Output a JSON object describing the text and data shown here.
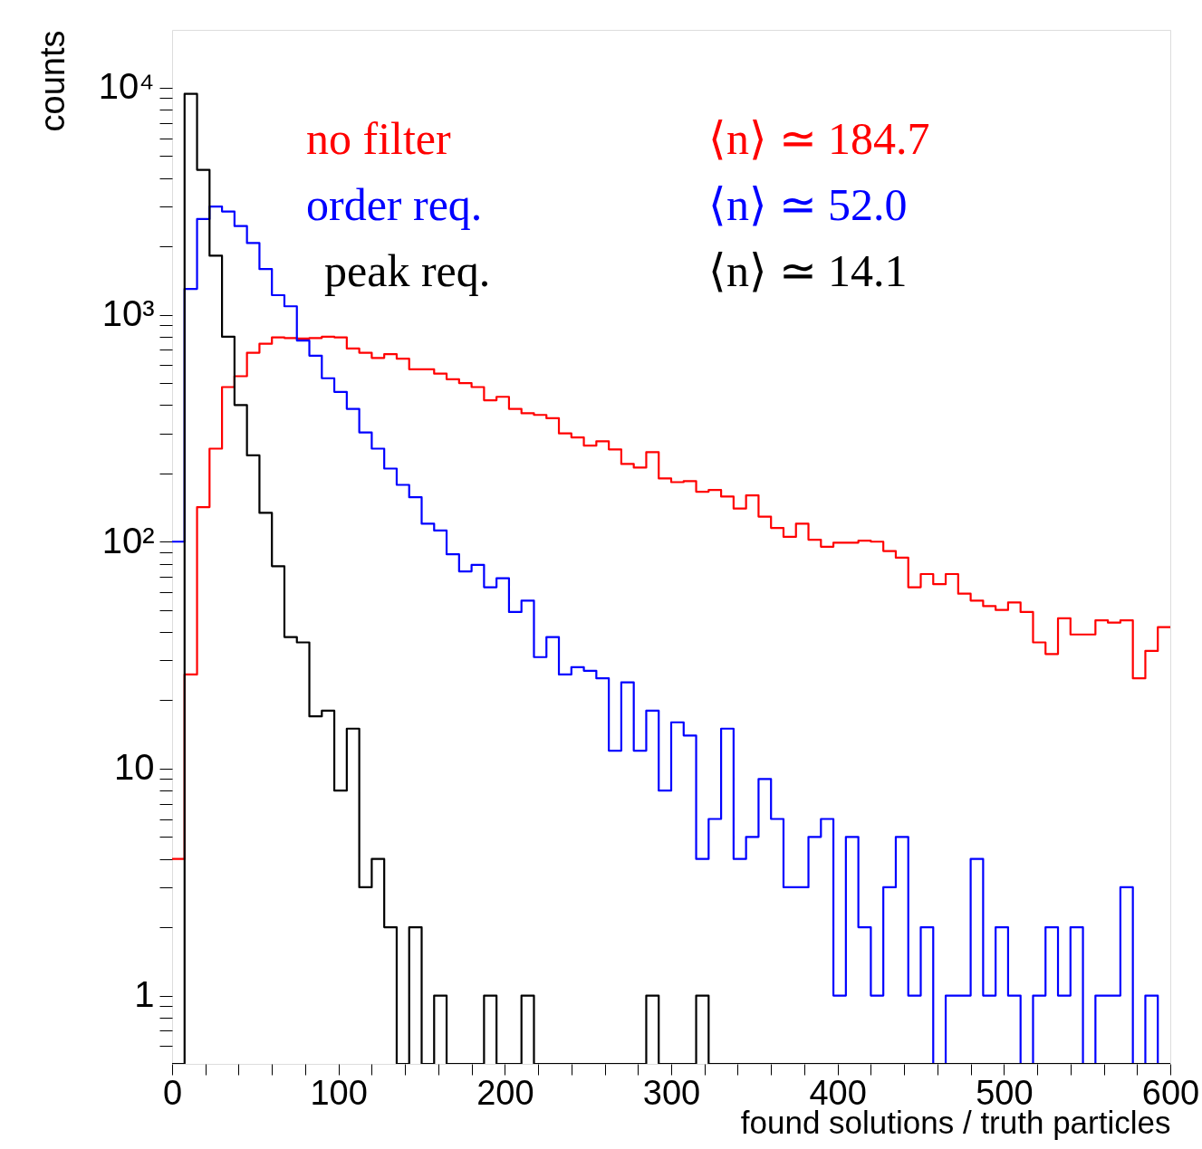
{
  "chart_data": {
    "type": "histogram",
    "xlabel": "found solutions / truth particles",
    "ylabel": "counts",
    "bins": [
      0,
      7.5,
      15,
      22.5,
      30,
      37.5,
      45,
      52.5,
      60,
      67.5,
      75,
      82.5,
      90,
      97.5,
      105,
      112.5,
      120,
      127.5,
      135,
      142.5,
      150,
      157.5,
      165,
      172.5,
      180,
      187.5,
      195,
      202.5,
      210,
      217.5,
      225,
      232.5,
      240,
      247.5,
      255,
      262.5,
      270,
      277.5,
      285,
      292.5,
      300,
      307.5,
      315,
      322.5,
      330,
      337.5,
      345,
      352.5,
      360,
      367.5,
      375,
      382.5,
      390,
      397.5,
      405,
      412.5,
      420,
      427.5,
      435,
      442.5,
      450,
      457.5,
      465,
      472.5,
      480,
      487.5,
      495,
      502.5,
      510,
      517.5,
      525,
      532.5,
      540,
      547.5,
      555,
      562.5,
      570,
      577.5,
      585,
      592.5,
      600
    ],
    "series": [
      {
        "name": "no filter",
        "color": "#ff0000",
        "values": [
          4,
          26,
          142,
          257,
          480,
          536,
          680,
          745,
          795,
          790,
          785,
          790,
          800,
          795,
          710,
          680,
          645,
          670,
          640,
          575,
          575,
          550,
          520,
          500,
          480,
          420,
          435,
          385,
          368,
          362,
          350,
          300,
          288,
          265,
          277,
          255,
          220,
          212,
          248,
          190,
          183,
          185,
          166,
          169,
          158,
          140,
          160,
          129,
          115,
          105,
          120,
          102,
          95,
          99,
          99,
          101,
          100,
          91,
          85,
          63,
          72,
          65,
          72,
          59,
          55,
          52,
          50,
          54,
          49,
          36,
          32,
          46,
          39,
          39,
          45,
          44,
          45,
          25,
          33,
          42
        ]
      },
      {
        "name": "order req.",
        "color": "#0000ff",
        "values": [
          100,
          1300,
          2640,
          3000,
          2850,
          2460,
          2070,
          1590,
          1220,
          1090,
          770,
          660,
          525,
          457,
          385,
          303,
          257,
          210,
          178,
          157,
          120,
          112,
          88,
          74,
          79,
          63,
          69,
          49,
          55,
          31,
          38,
          26,
          28,
          27,
          25,
          12,
          24,
          12,
          18,
          8,
          16,
          14,
          4,
          6,
          15,
          4,
          5,
          9,
          6,
          3,
          3,
          5,
          6,
          1,
          5,
          2,
          1,
          3,
          5,
          1,
          2,
          null,
          1,
          1,
          4,
          1,
          2,
          1,
          null,
          1,
          2,
          1,
          2,
          null,
          1,
          1,
          3,
          null,
          1,
          null
        ]
      },
      {
        "name": "peak req.",
        "color": "#000000",
        "values": [
          null,
          9400,
          4350,
          1820,
          800,
          400,
          240,
          134,
          78,
          38,
          36,
          17,
          18,
          8,
          15,
          3,
          4,
          2,
          null,
          2,
          null,
          1,
          null,
          null,
          null,
          1,
          null,
          null,
          1,
          null,
          null,
          null,
          null,
          null,
          null,
          null,
          null,
          null,
          1,
          null,
          null,
          null,
          1,
          null,
          null,
          null,
          null,
          null,
          null,
          null,
          null,
          null,
          null,
          null,
          null,
          null,
          null,
          null,
          null,
          null,
          null,
          null,
          null,
          null,
          null,
          null,
          null,
          null,
          null,
          null,
          null,
          null,
          null,
          null,
          null,
          null,
          null,
          null,
          null,
          null
        ]
      }
    ],
    "annotations": [
      "⟨n⟩ ≃ 184.7",
      "⟨n⟩ ≃ 52.0",
      "⟨n⟩ ≃ 14.1"
    ],
    "log": "y",
    "xlim": [
      0,
      600
    ],
    "xticks": [
      0,
      {
        "value": 20,
        "label": null
      },
      {
        "value": 40,
        "label": null
      },
      {
        "value": 60,
        "label": null
      },
      {
        "value": 80,
        "label": null
      },
      100,
      {
        "value": 120,
        "label": null
      },
      {
        "value": 140,
        "label": null
      },
      {
        "value": 160,
        "label": null
      },
      {
        "value": 180,
        "label": null
      },
      200,
      {
        "value": 220,
        "label": null
      },
      {
        "value": 240,
        "label": null
      },
      {
        "value": 260,
        "label": null
      },
      {
        "value": 280,
        "label": null
      },
      300,
      {
        "value": 320,
        "label": null
      },
      {
        "value": 340,
        "label": null
      },
      {
        "value": 360,
        "label": null
      },
      {
        "value": 380,
        "label": null
      },
      400,
      {
        "value": 420,
        "label": null
      },
      {
        "value": 440,
        "label": null
      },
      {
        "value": 460,
        "label": null
      },
      {
        "value": 480,
        "label": null
      },
      500,
      {
        "value": 520,
        "label": null
      },
      {
        "value": 540,
        "label": null
      },
      {
        "value": 560,
        "label": null
      },
      {
        "value": 580,
        "label": null
      },
      600
    ],
    "ylim": [
      0.5,
      18000
    ],
    "yticks": [
      {
        "value": 0.6,
        "label": null
      },
      {
        "value": 0.7,
        "label": null
      },
      {
        "value": 0.8,
        "label": null
      },
      {
        "value": 0.9,
        "label": null
      },
      1,
      {
        "value": 2,
        "label": null
      },
      {
        "value": 3,
        "label": null
      },
      {
        "value": 4,
        "label": null
      },
      {
        "value": 5,
        "label": null
      },
      {
        "value": 6,
        "label": null
      },
      {
        "value": 7,
        "label": null
      },
      {
        "value": 8,
        "label": null
      },
      {
        "value": 9,
        "label": null
      },
      10,
      {
        "value": 20,
        "label": null
      },
      {
        "value": 30,
        "label": null
      },
      {
        "value": 40,
        "label": null
      },
      {
        "value": 50,
        "label": null
      },
      {
        "value": 60,
        "label": null
      },
      {
        "value": 70,
        "label": null
      },
      {
        "value": 80,
        "label": null
      },
      {
        "value": 90,
        "label": null
      },
      {
        "value": 100,
        "label": "10²"
      },
      {
        "value": 200,
        "label": null
      },
      {
        "value": 300,
        "label": null
      },
      {
        "value": 400,
        "label": null
      },
      {
        "value": 500,
        "label": null
      },
      {
        "value": 600,
        "label": null
      },
      {
        "value": 700,
        "label": null
      },
      {
        "value": 800,
        "label": null
      },
      {
        "value": 900,
        "label": null
      },
      {
        "value": 1000,
        "label": "10³"
      },
      {
        "value": 2000,
        "label": null
      },
      {
        "value": 3000,
        "label": null
      },
      {
        "value": 4000,
        "label": null
      },
      {
        "value": 5000,
        "label": null
      },
      {
        "value": 6000,
        "label": null
      },
      {
        "value": 7000,
        "label": null
      },
      {
        "value": 8000,
        "label": null
      },
      {
        "value": 9000,
        "label": null
      },
      {
        "value": 10000,
        "label": "10⁴"
      }
    ],
    "grid": false,
    "legend": "top left"
  }
}
